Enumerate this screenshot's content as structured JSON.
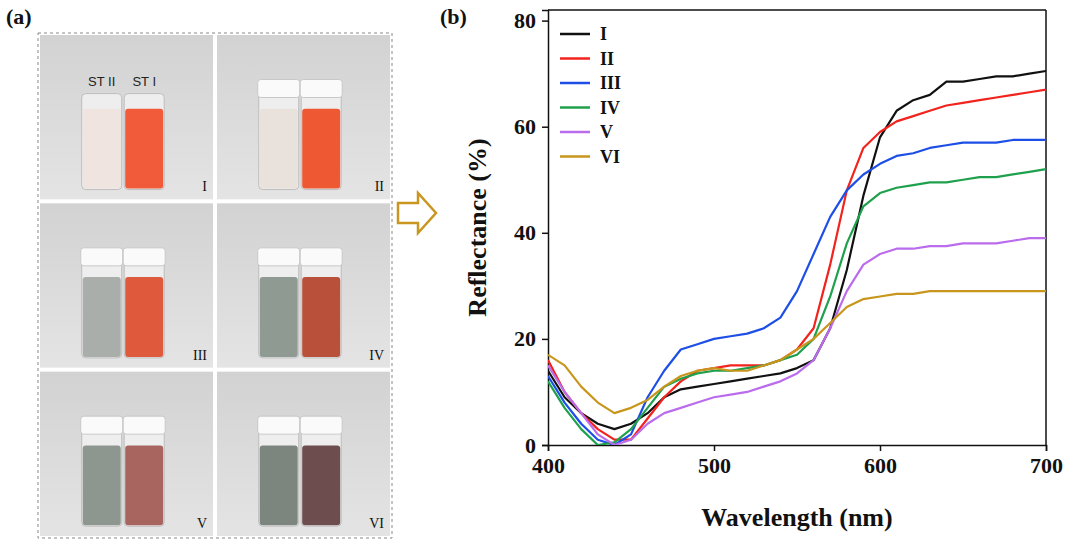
{
  "photo": {
    "label": "(a)",
    "vials": [
      "ST II",
      "ST I"
    ],
    "samples": [
      "I",
      "II",
      "III",
      "IV",
      "V",
      "VI"
    ],
    "vial_colors": [
      [
        "#efe4df",
        "#f15b3a"
      ],
      [
        "#e9e2dc",
        "#ee5934"
      ],
      [
        "#a9aeaa",
        "#df5a3c"
      ],
      [
        "#8f9a92",
        "#b9503a"
      ],
      [
        "#8d978f",
        "#a8655f"
      ],
      [
        "#7d857f",
        "#6d4d4e"
      ]
    ]
  },
  "chart_data": {
    "type": "line",
    "annotations": [
      "(b)"
    ],
    "x_label": "Wavelength (nm)",
    "y_label": "Reflectance (%)",
    "x": [
      400,
      410,
      420,
      430,
      440,
      450,
      460,
      470,
      480,
      490,
      500,
      510,
      520,
      530,
      540,
      550,
      560,
      570,
      580,
      590,
      600,
      610,
      620,
      630,
      640,
      650,
      660,
      670,
      680,
      690,
      700
    ],
    "series": [
      {
        "name": "I",
        "color": "#111111",
        "values": [
          14,
          9,
          6,
          4,
          3,
          4,
          6,
          9,
          10.5,
          11,
          11.5,
          12,
          12.5,
          13,
          13.5,
          14.5,
          16,
          22,
          33,
          47,
          58,
          63,
          65,
          66,
          68.5,
          68.5,
          69,
          69.5,
          69.5,
          70,
          70.5
        ]
      },
      {
        "name": "II",
        "color": "#f2231c",
        "values": [
          16,
          10,
          6,
          3,
          1,
          1,
          5,
          9,
          12,
          14,
          14.5,
          15,
          15,
          15,
          16,
          18,
          22,
          34,
          48,
          56,
          59,
          61,
          62,
          63,
          64,
          64.5,
          65,
          65.5,
          66,
          66.5,
          67
        ]
      },
      {
        "name": "III",
        "color": "#1d4fe6",
        "values": [
          13,
          8,
          4,
          1,
          0,
          2,
          9,
          14,
          18,
          19,
          20,
          20.5,
          21,
          22,
          24,
          29,
          36,
          43,
          48,
          51,
          53,
          54.5,
          55,
          56,
          56.5,
          57,
          57,
          57,
          57.5,
          57.5,
          57.5
        ]
      },
      {
        "name": "IV",
        "color": "#1fa04c",
        "values": [
          12,
          7,
          3,
          0,
          0.5,
          3,
          7,
          11,
          12.5,
          13.5,
          14,
          14,
          14.5,
          15,
          16,
          17,
          20,
          28,
          38,
          45,
          47.5,
          48.5,
          49,
          49.5,
          49.5,
          50,
          50.5,
          50.5,
          51,
          51.5,
          52
        ]
      },
      {
        "name": "V",
        "color": "#bb6cec",
        "values": [
          15,
          10,
          6,
          2,
          0,
          1,
          4,
          6,
          7,
          8,
          9,
          9.5,
          10,
          11,
          12,
          13.5,
          16,
          22,
          29,
          34,
          36,
          37,
          37,
          37.5,
          37.5,
          38,
          38,
          38,
          38.5,
          39,
          39
        ]
      },
      {
        "name": "VI",
        "color": "#c8961c",
        "values": [
          17,
          15,
          11,
          8,
          6,
          7,
          8.5,
          11,
          13,
          14,
          14.5,
          14,
          14,
          15,
          16,
          18,
          20,
          23,
          26,
          27.5,
          28,
          28.5,
          28.5,
          29,
          29,
          29,
          29,
          29,
          29,
          29,
          29
        ]
      }
    ],
    "xlim": [
      400,
      700
    ],
    "xticks": [
      400,
      500,
      600,
      700
    ],
    "ylim": [
      0,
      82
    ],
    "yticks": [
      0,
      20,
      40,
      60,
      80
    ],
    "grid": false,
    "legend": "upper left"
  }
}
